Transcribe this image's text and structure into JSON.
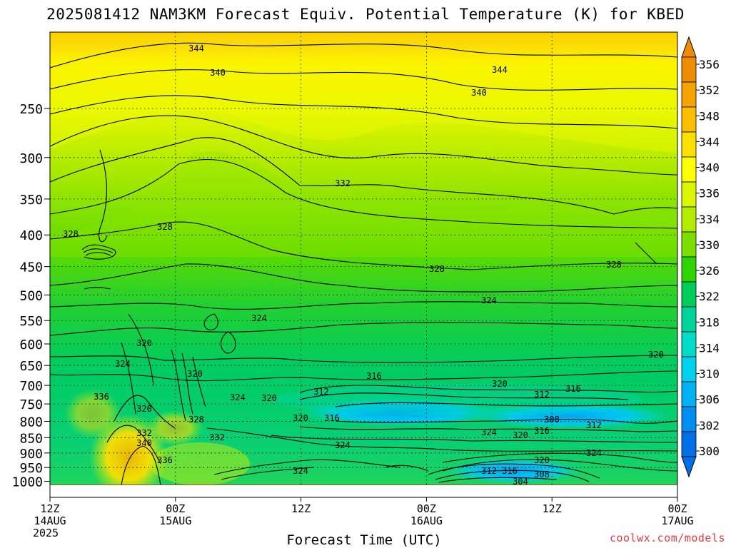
{
  "title": "2025081412 NAM3KM Forecast Equiv. Potential Temperature (K) for KBED",
  "xlabel": "Forecast Time (UTC)",
  "credit": "coolwx.com/models",
  "chart_data": {
    "type": "heatmap",
    "title": "2025081412 NAM3KM Forecast Equiv. Potential Temperature (K) for KBED",
    "xlabel": "Forecast Time (UTC)",
    "ylabel": "",
    "x_ticks": [
      {
        "hour": 0,
        "lines": [
          "12Z",
          "14AUG",
          "2025"
        ]
      },
      {
        "hour": 12,
        "lines": [
          "00Z",
          "15AUG"
        ]
      },
      {
        "hour": 24,
        "lines": [
          "12Z"
        ]
      },
      {
        "hour": 36,
        "lines": [
          "00Z",
          "16AUG"
        ]
      },
      {
        "hour": 48,
        "lines": [
          "12Z"
        ]
      },
      {
        "hour": 60,
        "lines": [
          "00Z",
          "17AUG"
        ]
      }
    ],
    "xlim": [
      0,
      60
    ],
    "y_ticks": [
      250,
      300,
      350,
      400,
      450,
      500,
      550,
      600,
      650,
      700,
      750,
      800,
      850,
      900,
      950,
      1000
    ],
    "ylim": [
      1020,
      200
    ],
    "y_scale": "log-pressure",
    "grid": true,
    "colorbar": {
      "labels": [
        356,
        352,
        348,
        344,
        340,
        336,
        334,
        330,
        326,
        322,
        318,
        314,
        310,
        306,
        302,
        300
      ],
      "colors": [
        "#f08c00",
        "#f5a300",
        "#fbbf00",
        "#fde000",
        "#fbff00",
        "#dcf500",
        "#b4ec00",
        "#7cde00",
        "#2ed400",
        "#00cc5a",
        "#00d49a",
        "#00dcc8",
        "#00d2ee",
        "#00b2f4",
        "#008ff0",
        "#0070e6"
      ]
    },
    "contour_labels": [
      {
        "value": "344",
        "x": 275,
        "y": 68
      },
      {
        "value": "340",
        "x": 305,
        "y": 102
      },
      {
        "value": "344",
        "x": 700,
        "y": 98
      },
      {
        "value": "340",
        "x": 671,
        "y": 130
      },
      {
        "value": "332",
        "x": 480,
        "y": 257
      },
      {
        "value": "328",
        "x": 99,
        "y": 328
      },
      {
        "value": "328",
        "x": 231,
        "y": 318
      },
      {
        "value": "328",
        "x": 612,
        "y": 377
      },
      {
        "value": "328",
        "x": 860,
        "y": 371
      },
      {
        "value": "324",
        "x": 685,
        "y": 421
      },
      {
        "value": "324",
        "x": 363,
        "y": 446
      },
      {
        "value": "320",
        "x": 202,
        "y": 481
      },
      {
        "value": "324",
        "x": 172,
        "y": 510
      },
      {
        "value": "320",
        "x": 273,
        "y": 524
      },
      {
        "value": "316",
        "x": 524,
        "y": 527
      },
      {
        "value": "320",
        "x": 700,
        "y": 538
      },
      {
        "value": "320",
        "x": 919,
        "y": 497
      },
      {
        "value": "336",
        "x": 142,
        "y": 556
      },
      {
        "value": "312",
        "x": 450,
        "y": 549
      },
      {
        "value": "312",
        "x": 759,
        "y": 553
      },
      {
        "value": "316",
        "x": 803,
        "y": 545
      },
      {
        "value": "324",
        "x": 333,
        "y": 557
      },
      {
        "value": "320",
        "x": 377,
        "y": 558
      },
      {
        "value": "320",
        "x": 202,
        "y": 573
      },
      {
        "value": "328",
        "x": 275,
        "y": 588
      },
      {
        "value": "320",
        "x": 421,
        "y": 586
      },
      {
        "value": "316",
        "x": 465,
        "y": 586
      },
      {
        "value": "308",
        "x": 773,
        "y": 588
      },
      {
        "value": "312",
        "x": 832,
        "y": 596
      },
      {
        "value": "316",
        "x": 759,
        "y": 604
      },
      {
        "value": "324",
        "x": 685,
        "y": 606
      },
      {
        "value": "320",
        "x": 729,
        "y": 610
      },
      {
        "value": "332",
        "x": 202,
        "y": 607
      },
      {
        "value": "332",
        "x": 304,
        "y": 613
      },
      {
        "value": "340",
        "x": 202,
        "y": 621
      },
      {
        "value": "324",
        "x": 480,
        "y": 624
      },
      {
        "value": "324",
        "x": 832,
        "y": 635
      },
      {
        "value": "336",
        "x": 231,
        "y": 645
      },
      {
        "value": "320",
        "x": 759,
        "y": 645
      },
      {
        "value": "324",
        "x": 421,
        "y": 660
      },
      {
        "value": "312",
        "x": 685,
        "y": 660
      },
      {
        "value": "316",
        "x": 714,
        "y": 660
      },
      {
        "value": "308",
        "x": 759,
        "y": 665
      },
      {
        "value": "304",
        "x": 729,
        "y": 675
      }
    ]
  }
}
